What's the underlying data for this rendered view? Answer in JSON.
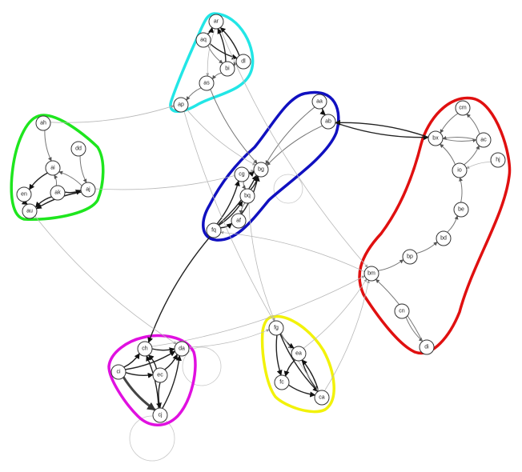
{
  "nodes": [
    {
      "id": "ar"
    },
    {
      "id": "aq"
    },
    {
      "id": "dl"
    },
    {
      "id": "bi"
    },
    {
      "id": "as"
    },
    {
      "id": "ap"
    },
    {
      "id": "ah"
    },
    {
      "id": "dd"
    },
    {
      "id": "ai"
    },
    {
      "id": "en"
    },
    {
      "id": "ak"
    },
    {
      "id": "aj"
    },
    {
      "id": "au"
    },
    {
      "id": "aa"
    },
    {
      "id": "ab"
    },
    {
      "id": "cg"
    },
    {
      "id": "bg"
    },
    {
      "id": "bq"
    },
    {
      "id": "af"
    },
    {
      "id": "fq"
    },
    {
      "id": "cm"
    },
    {
      "id": "bx"
    },
    {
      "id": "ac"
    },
    {
      "id": "hj"
    },
    {
      "id": "io"
    },
    {
      "id": "be"
    },
    {
      "id": "bd"
    },
    {
      "id": "bp"
    },
    {
      "id": "bm"
    },
    {
      "id": "cn"
    },
    {
      "id": "di"
    },
    {
      "id": "ch"
    },
    {
      "id": "da"
    },
    {
      "id": "ci"
    },
    {
      "id": "ec"
    },
    {
      "id": "cj"
    },
    {
      "id": "fg"
    },
    {
      "id": "ea"
    },
    {
      "id": "fc"
    },
    {
      "id": "ca"
    }
  ],
  "clusters": [
    {
      "color": "#22e6e6",
      "members": [
        "ar",
        "aq",
        "dl",
        "bi",
        "as",
        "ap"
      ]
    },
    {
      "color": "#1ee61e",
      "members": [
        "ah",
        "dd",
        "ai",
        "en",
        "ak",
        "aj",
        "au"
      ]
    },
    {
      "color": "#1010c0",
      "members": [
        "aa",
        "ab",
        "cg",
        "bg",
        "bq",
        "af",
        "fq"
      ]
    },
    {
      "color": "#e01010",
      "members": [
        "cm",
        "bx",
        "ac",
        "hj",
        "io",
        "be",
        "bd",
        "bp",
        "bm",
        "cn",
        "di"
      ]
    },
    {
      "color": "#e010e0",
      "members": [
        "ch",
        "da",
        "ci",
        "ec",
        "cj"
      ]
    },
    {
      "color": "#f2f20a",
      "members": [
        "fg",
        "ea",
        "fc",
        "ca"
      ]
    }
  ],
  "edges": [
    {
      "s": "aq",
      "t": "ar",
      "w": "dark"
    },
    {
      "s": "bi",
      "t": "ar",
      "w": "dark"
    },
    {
      "s": "dl",
      "t": "ar",
      "w": "dark"
    },
    {
      "s": "aq",
      "t": "dl",
      "w": "dark"
    },
    {
      "s": "aq",
      "t": "bi",
      "w": "mid"
    },
    {
      "s": "dl",
      "t": "bi",
      "w": "mid"
    },
    {
      "s": "ar",
      "t": "as",
      "w": "light"
    },
    {
      "s": "bi",
      "t": "as",
      "w": "mid"
    },
    {
      "s": "as",
      "t": "ap",
      "w": "mid"
    },
    {
      "s": "ah",
      "t": "ai",
      "w": "mid"
    },
    {
      "s": "dd",
      "t": "aj",
      "w": "mid"
    },
    {
      "s": "ai",
      "t": "en",
      "w": "dark"
    },
    {
      "s": "ak",
      "t": "ai",
      "w": "mid"
    },
    {
      "s": "aj",
      "t": "ai",
      "w": "mid"
    },
    {
      "s": "en",
      "t": "au",
      "w": "dark"
    },
    {
      "s": "ak",
      "t": "au",
      "w": "dark"
    },
    {
      "s": "aj",
      "t": "au",
      "w": "dark"
    },
    {
      "s": "ak",
      "t": "aj",
      "w": "dark"
    },
    {
      "s": "aa",
      "t": "ab",
      "w": "dark"
    },
    {
      "s": "aa",
      "t": "bg",
      "w": "mid"
    },
    {
      "s": "ab",
      "t": "bg",
      "w": "mid"
    },
    {
      "s": "cg",
      "t": "bg",
      "w": "dark"
    },
    {
      "s": "bq",
      "t": "bg",
      "w": "dark"
    },
    {
      "s": "af",
      "t": "bg",
      "w": "dark"
    },
    {
      "s": "fq",
      "t": "cg",
      "w": "dark"
    },
    {
      "s": "fq",
      "t": "bq",
      "w": "dark"
    },
    {
      "s": "fq",
      "t": "af",
      "w": "dark"
    },
    {
      "s": "cg",
      "t": "bq",
      "w": "mid"
    },
    {
      "s": "bq",
      "t": "af",
      "w": "mid"
    },
    {
      "s": "fq",
      "t": "bg",
      "w": "dark"
    },
    {
      "s": "cm",
      "t": "bx",
      "w": "mid"
    },
    {
      "s": "ac",
      "t": "cm",
      "w": "mid"
    },
    {
      "s": "bx",
      "t": "ac",
      "w": "mid"
    },
    {
      "s": "ac",
      "t": "bx",
      "w": "mid"
    },
    {
      "s": "io",
      "t": "bx",
      "w": "mid"
    },
    {
      "s": "io",
      "t": "ac",
      "w": "mid"
    },
    {
      "s": "hj",
      "t": "io",
      "w": "light"
    },
    {
      "s": "be",
      "t": "io",
      "w": "mid"
    },
    {
      "s": "bd",
      "t": "be",
      "w": "mid"
    },
    {
      "s": "bp",
      "t": "bd",
      "w": "mid"
    },
    {
      "s": "bm",
      "t": "bp",
      "w": "mid"
    },
    {
      "s": "cn",
      "t": "di",
      "w": "mid"
    },
    {
      "s": "di",
      "t": "bm",
      "w": "mid"
    },
    {
      "s": "ch",
      "t": "da",
      "w": "dark"
    },
    {
      "s": "ci",
      "t": "ch",
      "w": "dark"
    },
    {
      "s": "ec",
      "t": "ch",
      "w": "dark"
    },
    {
      "s": "cj",
      "t": "ch",
      "w": "dark"
    },
    {
      "s": "ci",
      "t": "da",
      "w": "dark"
    },
    {
      "s": "ec",
      "t": "da",
      "w": "dark"
    },
    {
      "s": "cj",
      "t": "da",
      "w": "dark"
    },
    {
      "s": "ci",
      "t": "cj",
      "w": "heavy"
    },
    {
      "s": "ec",
      "t": "cj",
      "w": "dark"
    },
    {
      "s": "ci",
      "t": "ec",
      "w": "dark"
    },
    {
      "s": "fg",
      "t": "ea",
      "w": "dark"
    },
    {
      "s": "fg",
      "t": "fc",
      "w": "dark"
    },
    {
      "s": "fg",
      "t": "ca",
      "w": "dark"
    },
    {
      "s": "ea",
      "t": "fc",
      "w": "dark"
    },
    {
      "s": "ea",
      "t": "ca",
      "w": "dark"
    },
    {
      "s": "fc",
      "t": "ca",
      "w": "dark"
    },
    {
      "s": "ca",
      "t": "ea",
      "w": "dark"
    },
    {
      "s": "ah",
      "t": "ap",
      "w": "light"
    },
    {
      "s": "ap",
      "t": "bg",
      "w": "light"
    },
    {
      "s": "as",
      "t": "bg",
      "w": "mid"
    },
    {
      "s": "ab",
      "t": "bx",
      "w": "dark"
    },
    {
      "s": "bx",
      "t": "ab",
      "w": "dark"
    },
    {
      "s": "fq",
      "t": "ch",
      "w": "dark"
    },
    {
      "s": "bm",
      "t": "fq",
      "w": "light"
    },
    {
      "s": "ar",
      "t": "bm",
      "w": "light"
    },
    {
      "s": "aj",
      "t": "bg",
      "w": "light"
    },
    {
      "s": "bq",
      "t": "fg",
      "w": "light"
    },
    {
      "s": "da",
      "t": "fg",
      "w": "light"
    },
    {
      "s": "ea",
      "t": "bm",
      "w": "light"
    },
    {
      "s": "ca",
      "t": "bm",
      "w": "light"
    },
    {
      "s": "au",
      "t": "da",
      "w": "light"
    },
    {
      "s": "ap",
      "t": "ca",
      "w": "light"
    },
    {
      "s": "ch",
      "t": "bm",
      "w": "light"
    }
  ]
}
